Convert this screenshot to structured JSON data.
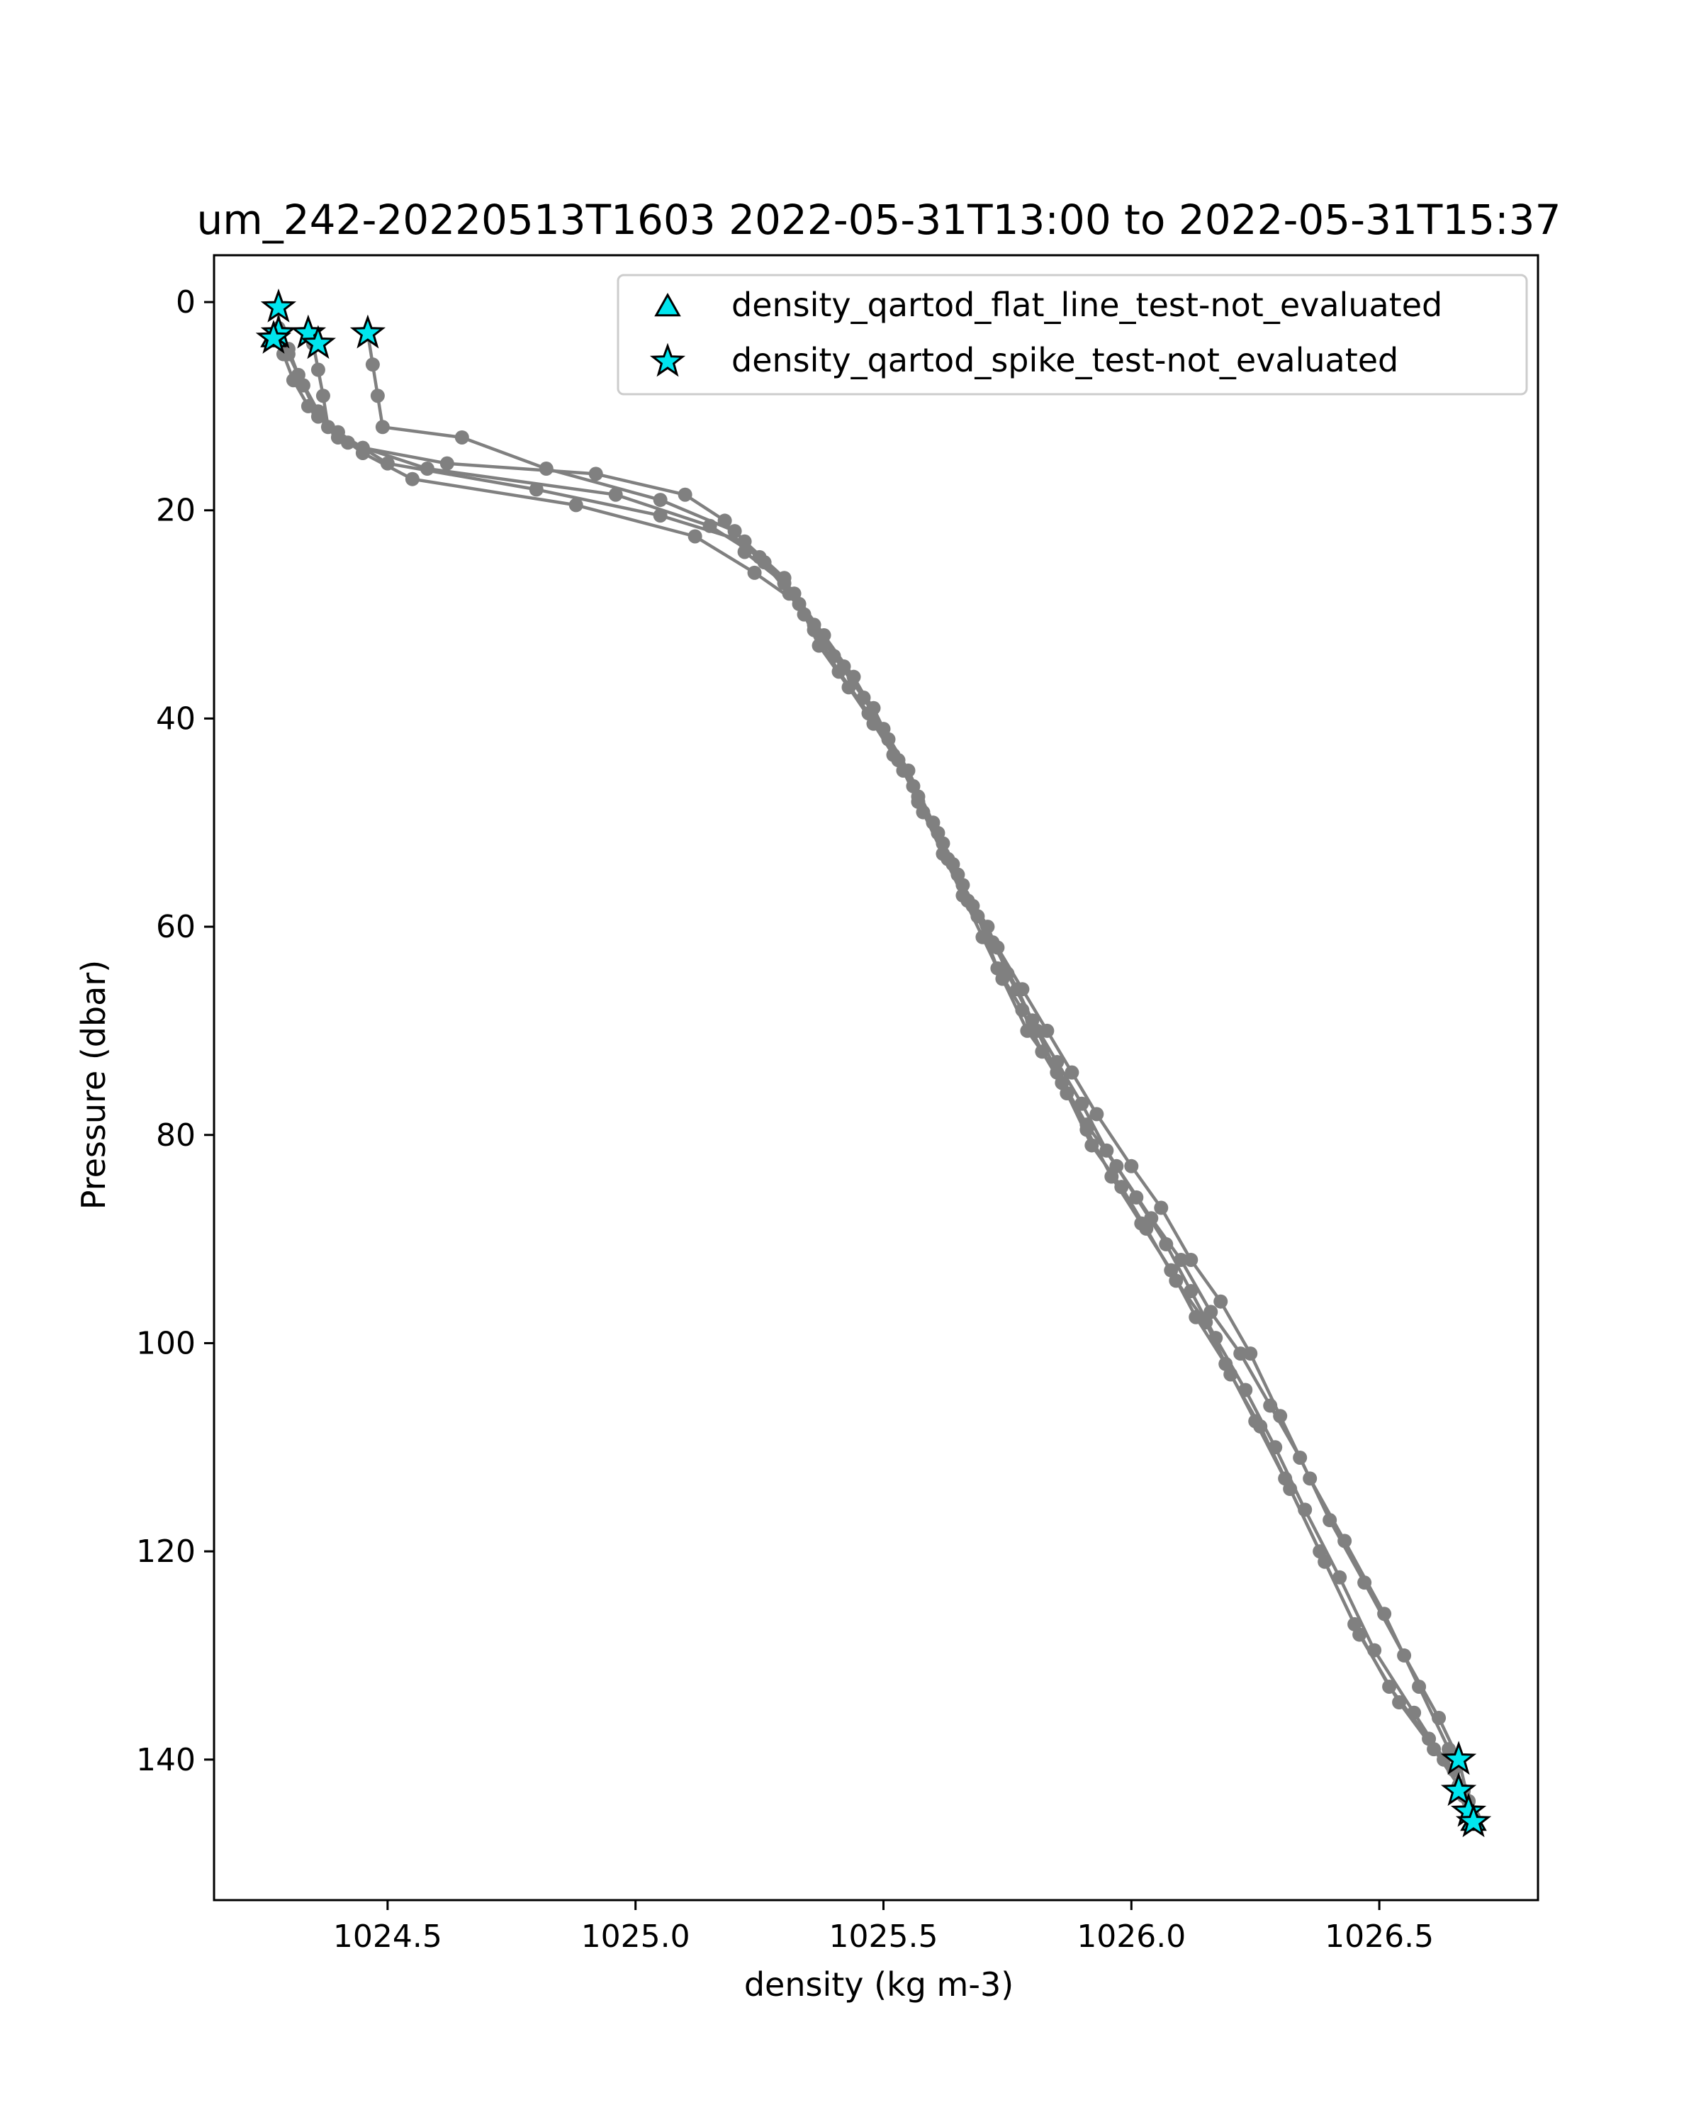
{
  "chart_data": {
    "type": "line",
    "title": "um_242-20220513T1603 2022-05-31T13:00 to 2022-05-31T15:37",
    "xlabel": "density (kg m-3)",
    "ylabel": "Pressure (dbar)",
    "xlim": [
      1024.15,
      1026.82
    ],
    "ylim": [
      153.5,
      -4.5
    ],
    "y_inverted": true,
    "xticks": [
      1024.5,
      1025.0,
      1025.5,
      1026.0,
      1026.5
    ],
    "xtick_labels": [
      "1024.5",
      "1025.0",
      "1025.5",
      "1026.0",
      "1026.5"
    ],
    "yticks": [
      0,
      20,
      40,
      60,
      80,
      100,
      120,
      140
    ],
    "ytick_labels": [
      "0",
      "20",
      "40",
      "60",
      "80",
      "100",
      "120",
      "140"
    ],
    "grid": false,
    "legend_position": "upper-right",
    "colors": {
      "profile": "#808080",
      "flag_fill": "#00e5ee",
      "flag_edge": "#000000"
    },
    "series": [
      {
        "color": "#808080",
        "x": [
          1024.28,
          1024.28,
          1024.3,
          1024.33,
          1024.36,
          1024.4,
          1024.45,
          1024.62,
          1024.92,
          1025.1,
          1025.18,
          1025.22,
          1025.3,
          1025.36,
          1025.42,
          1025.48,
          1025.53,
          1025.57,
          1025.62,
          1025.66,
          1025.7,
          1025.74,
          1025.79,
          1025.85,
          1025.91,
          1025.97,
          1026.04,
          1026.1,
          1026.16,
          1026.22,
          1026.28,
          1026.34,
          1026.4,
          1026.47,
          1026.55,
          1026.62,
          1026.66,
          1026.68,
          1026.69
        ],
        "y": [
          0.5,
          3,
          5,
          8,
          11,
          13,
          14,
          15.5,
          16.5,
          18.5,
          21,
          24,
          27,
          31,
          35,
          39,
          44,
          48,
          53,
          57,
          61,
          65,
          70,
          74,
          79,
          83,
          88,
          92,
          97,
          101,
          106,
          111,
          117,
          123,
          130,
          136,
          140,
          144,
          146
        ]
      },
      {
        "color": "#808080",
        "x": [
          1024.46,
          1024.47,
          1024.48,
          1024.49,
          1024.65,
          1024.82,
          1025.05,
          1025.2,
          1025.26,
          1025.32,
          1025.38,
          1025.44,
          1025.5,
          1025.55,
          1025.6,
          1025.64,
          1025.68,
          1025.73,
          1025.78,
          1025.83,
          1025.88,
          1025.93,
          1026.0,
          1026.06,
          1026.12,
          1026.18,
          1026.24,
          1026.3,
          1026.36,
          1026.43,
          1026.51,
          1026.58,
          1026.64,
          1026.67,
          1026.68
        ],
        "y": [
          3,
          6,
          9,
          12,
          13,
          16,
          19,
          22,
          25,
          28,
          32,
          36,
          41,
          45,
          50,
          54,
          58,
          62,
          66,
          70,
          74,
          78,
          83,
          87,
          92,
          96,
          101,
          107,
          113,
          119,
          126,
          133,
          139,
          143,
          145
        ]
      },
      {
        "color": "#808080",
        "x": [
          1024.27,
          1024.29,
          1024.31,
          1024.34,
          1024.4,
          1024.5,
          1024.8,
          1025.05,
          1025.22,
          1025.3,
          1025.34,
          1025.4,
          1025.46,
          1025.51,
          1025.56,
          1025.61,
          1025.65,
          1025.69,
          1025.73,
          1025.78,
          1025.82,
          1025.87,
          1025.92,
          1025.98,
          1026.03,
          1026.09,
          1026.15,
          1026.2,
          1026.26,
          1026.31,
          1026.38,
          1026.45,
          1026.52,
          1026.6,
          1026.65,
          1026.68,
          1026.69
        ],
        "y": [
          3.5,
          5,
          7.5,
          10,
          12.5,
          15.5,
          18,
          20.5,
          23,
          26.5,
          30,
          34,
          38,
          42,
          46.5,
          51,
          55,
          59,
          64,
          68,
          72,
          76,
          81,
          85,
          89,
          94,
          98,
          103,
          108,
          113,
          120,
          127,
          133,
          138,
          141,
          144,
          145.5
        ]
      },
      {
        "color": "#808080",
        "x": [
          1024.35,
          1024.36,
          1024.37,
          1024.38,
          1024.45,
          1024.55,
          1024.88,
          1025.12,
          1025.24,
          1025.33,
          1025.37,
          1025.43,
          1025.48,
          1025.54,
          1025.58,
          1025.63,
          1025.67,
          1025.72,
          1025.77,
          1025.81,
          1025.86,
          1025.91,
          1025.96,
          1026.02,
          1026.08,
          1026.13,
          1026.19,
          1026.25,
          1026.32,
          1026.39,
          1026.46,
          1026.54,
          1026.61,
          1026.66,
          1026.69
        ],
        "y": [
          4,
          6.5,
          9,
          12,
          14.5,
          17,
          19.5,
          22.5,
          26,
          29,
          33,
          37,
          40.5,
          45,
          49,
          53.5,
          57.5,
          61.5,
          66,
          70,
          75,
          79.5,
          84,
          88.5,
          93,
          97.5,
          102,
          107.5,
          114,
          121,
          128,
          134.5,
          139,
          142.5,
          146
        ]
      },
      {
        "color": "#808080",
        "x": [
          1024.28,
          1024.3,
          1024.32,
          1024.36,
          1024.42,
          1024.58,
          1024.96,
          1025.15,
          1025.25,
          1025.31,
          1025.36,
          1025.41,
          1025.47,
          1025.52,
          1025.57,
          1025.62,
          1025.66,
          1025.71,
          1025.75,
          1025.8,
          1025.85,
          1025.9,
          1025.95,
          1026.01,
          1026.07,
          1026.12,
          1026.17,
          1026.23,
          1026.29,
          1026.35,
          1026.42,
          1026.49,
          1026.57,
          1026.63,
          1026.67,
          1026.69
        ],
        "y": [
          2.5,
          4.5,
          7,
          10.5,
          13.5,
          16,
          18.5,
          21.5,
          24.5,
          28,
          31.5,
          35.5,
          39.5,
          43.5,
          47.5,
          52,
          56,
          60,
          64.5,
          69,
          73,
          77,
          81.5,
          86,
          90.5,
          95,
          99.5,
          104.5,
          110,
          116,
          122.5,
          129.5,
          135.5,
          140,
          143.5,
          146
        ]
      }
    ],
    "legend": [
      {
        "label": "density_qartod_flat_line_test-not_evaluated",
        "marker": "triangle",
        "color": "#00e5ee"
      },
      {
        "label": "density_qartod_spike_test-not_evaluated",
        "marker": "star",
        "color": "#00e5ee"
      }
    ],
    "flag_points": [
      {
        "test": "spike",
        "x": 1024.28,
        "y": 0.5
      },
      {
        "test": "spike",
        "x": 1024.28,
        "y": 3
      },
      {
        "test": "spike",
        "x": 1024.34,
        "y": 3
      },
      {
        "test": "spike",
        "x": 1024.36,
        "y": 4
      },
      {
        "test": "spike",
        "x": 1024.46,
        "y": 3
      },
      {
        "test": "spike",
        "x": 1024.27,
        "y": 3.5
      },
      {
        "test": "spike",
        "x": 1026.66,
        "y": 140
      },
      {
        "test": "spike",
        "x": 1026.66,
        "y": 143
      },
      {
        "test": "spike",
        "x": 1026.68,
        "y": 145
      },
      {
        "test": "spike",
        "x": 1026.69,
        "y": 146
      },
      {
        "test": "flat_line",
        "x": 1024.27,
        "y": 3.5
      },
      {
        "test": "flat_line",
        "x": 1026.69,
        "y": 146
      }
    ]
  }
}
